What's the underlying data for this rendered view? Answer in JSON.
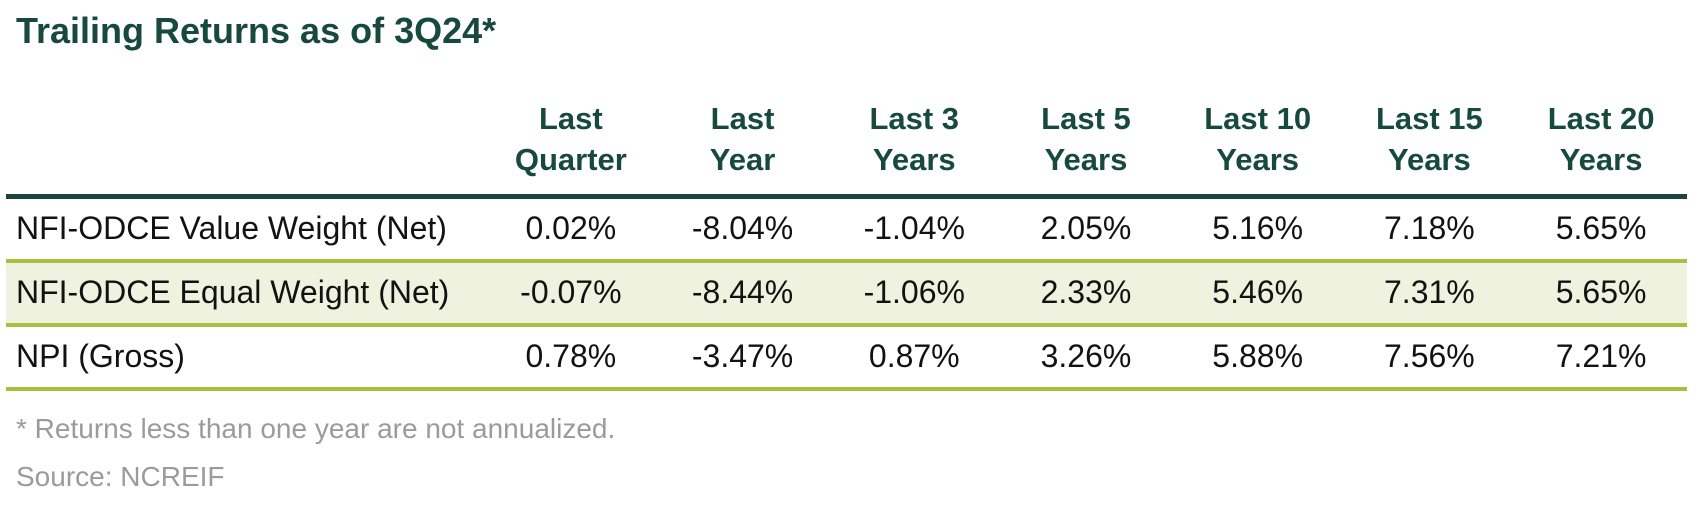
{
  "chart_data": {
    "type": "table",
    "title": "Trailing Returns as of 3Q24*",
    "columns": [
      {
        "label": "Last Quarter",
        "line1": "Last",
        "line2": "Quarter"
      },
      {
        "label": "Last Year",
        "line1": "Last",
        "line2": "Year"
      },
      {
        "label": "Last 3 Years",
        "line1": "Last 3",
        "line2": "Years"
      },
      {
        "label": "Last 5 Years",
        "line1": "Last 5",
        "line2": "Years"
      },
      {
        "label": "Last 10 Years",
        "line1": "Last 10",
        "line2": "Years"
      },
      {
        "label": "Last 15 Years",
        "line1": "Last 15",
        "line2": "Years"
      },
      {
        "label": "Last 20 Years",
        "line1": "Last 20",
        "line2": "Years"
      }
    ],
    "rows": [
      {
        "label": "NFI-ODCE Value Weight (Net)",
        "values": [
          0.02,
          -8.04,
          -1.04,
          2.05,
          5.16,
          7.18,
          5.65
        ],
        "display": [
          "0.02%",
          "-8.04%",
          "-1.04%",
          "2.05%",
          "5.16%",
          "7.18%",
          "5.65%"
        ]
      },
      {
        "label": "NFI-ODCE Equal Weight (Net)",
        "values": [
          -0.07,
          -8.44,
          -1.06,
          2.33,
          5.46,
          7.31,
          5.65
        ],
        "display": [
          "-0.07%",
          "-8.44%",
          "-1.06%",
          "2.33%",
          "5.46%",
          "7.31%",
          "5.65%"
        ]
      },
      {
        "label": "NPI (Gross)",
        "values": [
          0.78,
          -3.47,
          0.87,
          3.26,
          5.88,
          7.56,
          7.21
        ],
        "display": [
          "0.78%",
          "-3.47%",
          "0.87%",
          "3.26%",
          "5.88%",
          "7.56%",
          "7.21%"
        ]
      }
    ],
    "footnote": "* Returns less than one year are not annualized.",
    "source": "Source: NCREIF",
    "units": "%",
    "layout": {
      "grid": "horizontal-rules-only",
      "striped_row_index": 1
    }
  },
  "colors": {
    "heading_green": "#17493d",
    "header_rule_teal": "#1e443f",
    "row_rule_olive": "#a6c13f",
    "striped_row_bg": "#eef2de",
    "body_text": "#121212",
    "footnote_gray": "#9b9b9b",
    "background": "#ffffff"
  }
}
